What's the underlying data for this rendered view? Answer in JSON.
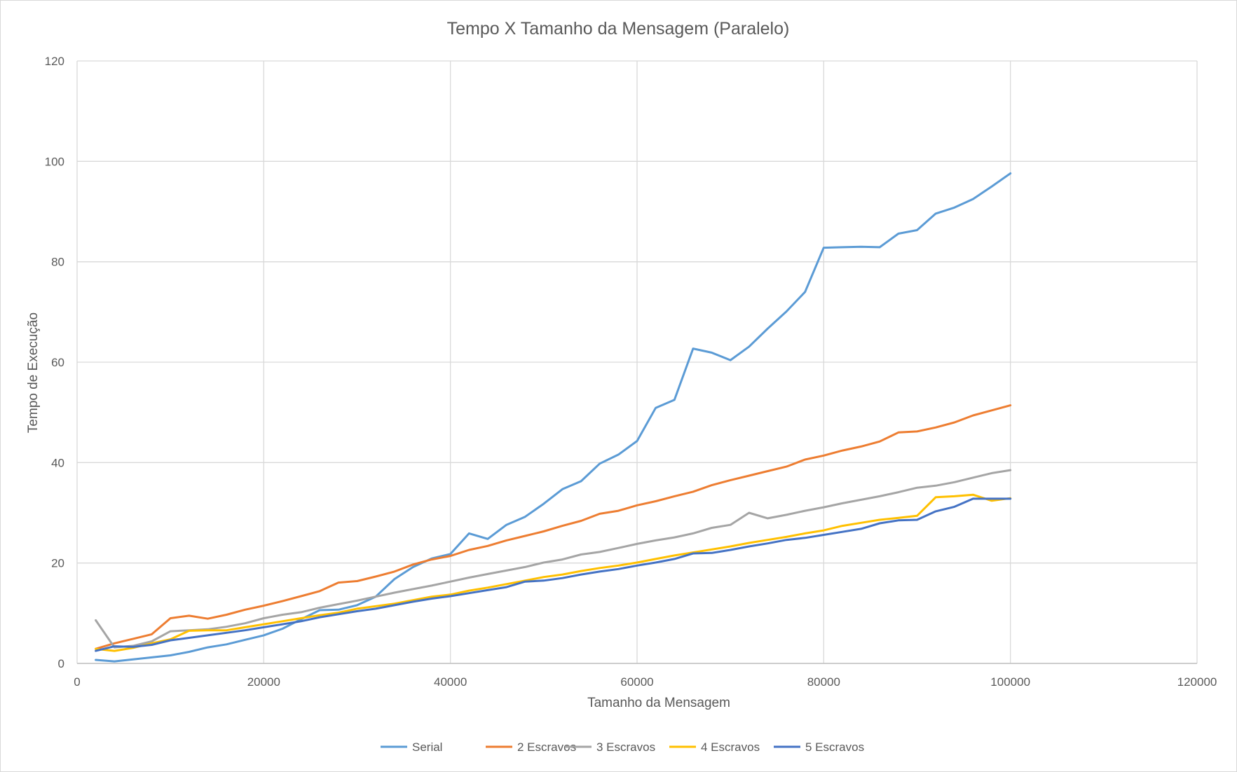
{
  "chart_data": {
    "type": "line",
    "title": "Tempo X Tamanho da Mensagem (Paralelo)",
    "xlabel": "Tamanho da Mensagem",
    "ylabel": "Tempo de Execução",
    "xlim": [
      0,
      120000
    ],
    "ylim": [
      0,
      120
    ],
    "x_ticks": [
      0,
      20000,
      40000,
      60000,
      80000,
      100000,
      120000
    ],
    "y_ticks": [
      0,
      20,
      40,
      60,
      80,
      100,
      120
    ],
    "grid": true,
    "legend_position": "bottom",
    "x": [
      2000,
      4000,
      6000,
      8000,
      10000,
      12000,
      14000,
      16000,
      18000,
      20000,
      22000,
      24000,
      26000,
      28000,
      30000,
      32000,
      34000,
      36000,
      38000,
      40000,
      42000,
      44000,
      46000,
      48000,
      50000,
      52000,
      54000,
      56000,
      58000,
      60000,
      62000,
      64000,
      66000,
      68000,
      70000,
      72000,
      74000,
      76000,
      78000,
      80000,
      82000,
      84000,
      86000,
      88000,
      90000,
      92000,
      94000,
      96000,
      98000,
      100000
    ],
    "series": [
      {
        "name": "Serial",
        "color": "#5b9bd5",
        "values": [
          0.7,
          0.4,
          0.8,
          1.2,
          1.6,
          2.3,
          3.2,
          3.8,
          4.7,
          5.6,
          6.9,
          8.8,
          10.6,
          10.7,
          11.6,
          13.3,
          16.8,
          19.2,
          20.9,
          21.8,
          25.9,
          24.8,
          27.6,
          29.2,
          31.8,
          34.7,
          36.3,
          39.8,
          41.6,
          44.3,
          50.9,
          52.5,
          62.7,
          61.9,
          60.4,
          63.1,
          66.7,
          70.1,
          74.0,
          82.8,
          82.9,
          83.0,
          82.9,
          85.6,
          86.3,
          89.6,
          90.8,
          92.5,
          95.0,
          97.6
        ]
      },
      {
        "name": "2 Escravos",
        "color": "#ed7d31",
        "values": [
          2.9,
          4.0,
          4.9,
          5.8,
          9.0,
          9.5,
          8.9,
          9.7,
          10.7,
          11.5,
          12.4,
          13.4,
          14.4,
          16.1,
          16.4,
          17.3,
          18.3,
          19.7,
          20.7,
          21.4,
          22.6,
          23.4,
          24.5,
          25.4,
          26.3,
          27.4,
          28.4,
          29.8,
          30.4,
          31.5,
          32.3,
          33.3,
          34.2,
          35.5,
          36.5,
          37.4,
          38.3,
          39.2,
          40.6,
          41.4,
          42.4,
          43.2,
          44.2,
          46.0,
          46.2,
          47.0,
          48.0,
          49.4,
          50.4,
          51.4
        ]
      },
      {
        "name": "3 Escravos",
        "color": "#a5a5a5",
        "values": [
          8.6,
          3.2,
          3.5,
          4.4,
          6.4,
          6.6,
          6.8,
          7.3,
          8.0,
          9.0,
          9.7,
          10.2,
          11.1,
          11.8,
          12.5,
          13.3,
          14.1,
          14.8,
          15.5,
          16.3,
          17.1,
          17.8,
          18.5,
          19.2,
          20.1,
          20.7,
          21.7,
          22.2,
          23.0,
          23.8,
          24.5,
          25.1,
          25.9,
          27.0,
          27.6,
          30.0,
          28.9,
          29.6,
          30.4,
          31.1,
          31.9,
          32.6,
          33.3,
          34.1,
          35.0,
          35.4,
          36.1,
          37.0,
          37.9,
          38.5
        ]
      },
      {
        "name": "4 Escravos",
        "color": "#ffc000",
        "values": [
          2.9,
          2.5,
          3.1,
          4.0,
          4.8,
          6.5,
          6.6,
          6.6,
          7.2,
          7.8,
          8.4,
          9.0,
          9.6,
          10.1,
          10.9,
          11.4,
          11.9,
          12.6,
          13.3,
          13.7,
          14.5,
          15.1,
          15.8,
          16.5,
          17.2,
          17.7,
          18.4,
          19.0,
          19.5,
          20.1,
          20.8,
          21.5,
          22.1,
          22.7,
          23.3,
          24.0,
          24.6,
          25.2,
          25.9,
          26.5,
          27.4,
          28.0,
          28.6,
          29.0,
          29.4,
          33.1,
          33.3,
          33.6,
          32.4,
          32.9
        ]
      },
      {
        "name": "5 Escravos",
        "color": "#4472c4",
        "values": [
          2.5,
          3.4,
          3.3,
          3.7,
          4.6,
          5.1,
          5.6,
          6.1,
          6.6,
          7.2,
          7.8,
          8.4,
          9.2,
          9.8,
          10.4,
          10.9,
          11.6,
          12.3,
          12.9,
          13.4,
          14.0,
          14.6,
          15.2,
          16.3,
          16.5,
          17.0,
          17.7,
          18.3,
          18.8,
          19.5,
          20.1,
          20.8,
          21.9,
          22.0,
          22.6,
          23.3,
          23.9,
          24.6,
          25.0,
          25.6,
          26.2,
          26.8,
          27.9,
          28.5,
          28.6,
          30.3,
          31.2,
          32.8,
          32.8,
          32.8
        ]
      }
    ]
  }
}
